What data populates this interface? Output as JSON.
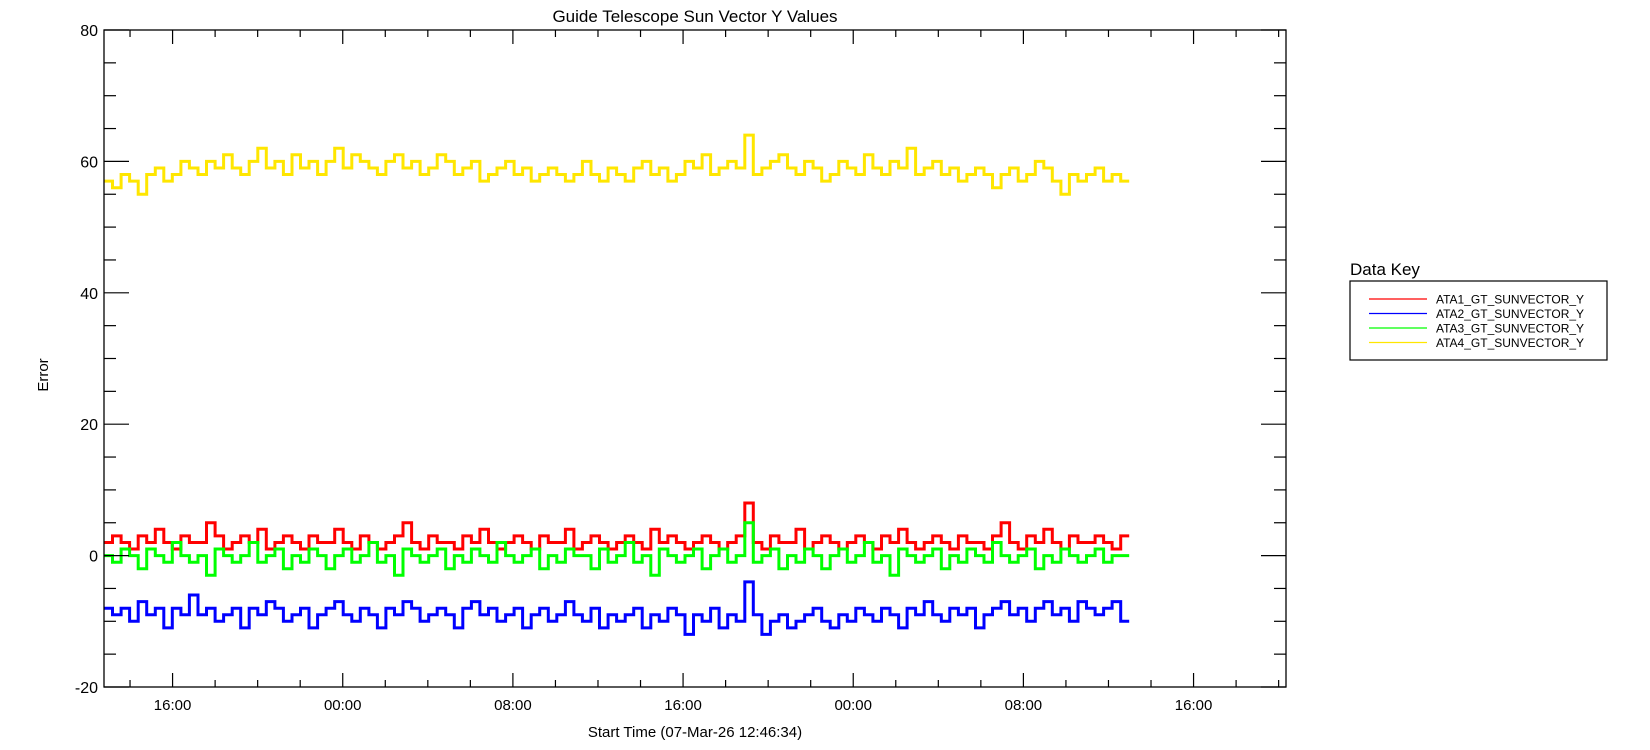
{
  "chart_data": {
    "type": "line",
    "title": "Guide Telescope Sun Vector Y Values",
    "xlabel": "Start Time (07-Mar-26 12:46:34)",
    "ylabel": "Error",
    "x_units": "hours since start",
    "xlim": [
      0,
      55.57
    ],
    "ylim": [
      -20,
      80
    ],
    "y_ticks": [
      -20,
      0,
      20,
      40,
      60,
      80
    ],
    "y_tick_labels": [
      "-20",
      "0",
      "20",
      "40",
      "60",
      "80"
    ],
    "y_minor_step": 5,
    "x_major_ticks": [
      3.224,
      11.224,
      19.224,
      27.224,
      35.224,
      43.224,
      51.224
    ],
    "x_tick_labels": [
      "16:00",
      "00:00",
      "08:00",
      "16:00",
      "00:00",
      "08:00",
      "16:00"
    ],
    "x_minor_step_hours": 2,
    "data_x_range": [
      0,
      48.2
    ],
    "grid": false,
    "legend": {
      "title": "Data Key",
      "placement": "right"
    },
    "series": [
      {
        "name": "ATA1_GT_SUNVECTOR_Y",
        "color": "#ff0000",
        "values": [
          2,
          3,
          2,
          1,
          3,
          2,
          4,
          2,
          1,
          3,
          2,
          2,
          5,
          3,
          1,
          2,
          3,
          2,
          4,
          1,
          2,
          3,
          2,
          1,
          3,
          2,
          2,
          4,
          2,
          1,
          3,
          2,
          1,
          2,
          3,
          5,
          2,
          1,
          3,
          2,
          2,
          1,
          3,
          2,
          4,
          2,
          1,
          2,
          3,
          2,
          1,
          3,
          2,
          2,
          4,
          1,
          2,
          3,
          2,
          1,
          2,
          3,
          2,
          1,
          4,
          2,
          3,
          2,
          1,
          2,
          3,
          2,
          1,
          2,
          3,
          8,
          2,
          1,
          3,
          2,
          2,
          4,
          1,
          2,
          3,
          2,
          1,
          2,
          3,
          2,
          1,
          3,
          2,
          4,
          2,
          1,
          2,
          3,
          2,
          1,
          3,
          2,
          2,
          1,
          3,
          5,
          2,
          1,
          3,
          2,
          4,
          2,
          1,
          3,
          2,
          2,
          3,
          2,
          1,
          3
        ]
      },
      {
        "name": "ATA2_GT_SUNVECTOR_Y",
        "color": "#0000ff",
        "values": [
          -8,
          -9,
          -8,
          -10,
          -7,
          -9,
          -8,
          -11,
          -8,
          -9,
          -6,
          -9,
          -8,
          -10,
          -9,
          -8,
          -11,
          -8,
          -9,
          -7,
          -8,
          -10,
          -9,
          -8,
          -11,
          -9,
          -8,
          -7,
          -9,
          -10,
          -8,
          -9,
          -11,
          -8,
          -9,
          -7,
          -8,
          -10,
          -9,
          -8,
          -9,
          -11,
          -8,
          -7,
          -9,
          -8,
          -10,
          -9,
          -8,
          -11,
          -9,
          -8,
          -10,
          -9,
          -7,
          -9,
          -10,
          -8,
          -11,
          -9,
          -10,
          -9,
          -8,
          -11,
          -9,
          -10,
          -8,
          -9,
          -12,
          -9,
          -10,
          -8,
          -11,
          -9,
          -10,
          -4,
          -9,
          -12,
          -10,
          -9,
          -11,
          -10,
          -9,
          -8,
          -10,
          -11,
          -9,
          -10,
          -8,
          -9,
          -10,
          -8,
          -9,
          -11,
          -8,
          -9,
          -7,
          -9,
          -10,
          -8,
          -9,
          -8,
          -11,
          -9,
          -8,
          -7,
          -9,
          -8,
          -10,
          -8,
          -7,
          -9,
          -8,
          -10,
          -7,
          -8,
          -9,
          -8,
          -7,
          -10
        ]
      },
      {
        "name": "ATA3_GT_SUNVECTOR_Y",
        "color": "#00ff00",
        "values": [
          0,
          -1,
          1,
          0,
          -2,
          1,
          0,
          -1,
          2,
          0,
          -1,
          0,
          -3,
          1,
          0,
          -1,
          0,
          2,
          -1,
          0,
          1,
          -2,
          0,
          -1,
          1,
          0,
          -2,
          0,
          1,
          -1,
          0,
          2,
          -1,
          0,
          -3,
          1,
          0,
          -1,
          0,
          1,
          -2,
          0,
          -1,
          1,
          0,
          -1,
          2,
          0,
          -1,
          0,
          1,
          -2,
          0,
          -1,
          1,
          0,
          0,
          -2,
          1,
          -1,
          0,
          2,
          -1,
          0,
          -3,
          1,
          0,
          -1,
          0,
          1,
          -2,
          0,
          1,
          -1,
          0,
          5,
          -1,
          0,
          1,
          -2,
          0,
          -1,
          1,
          0,
          -2,
          0,
          1,
          -1,
          0,
          2,
          -1,
          0,
          -3,
          1,
          0,
          -1,
          0,
          1,
          -2,
          0,
          -1,
          1,
          0,
          -1,
          2,
          0,
          -1,
          0,
          1,
          -2,
          0,
          -1,
          1,
          0,
          -1,
          0,
          1,
          -1,
          0,
          0
        ]
      },
      {
        "name": "ATA4_GT_SUNVECTOR_Y",
        "color": "#ffe600",
        "values": [
          57,
          56,
          58,
          57,
          55,
          58,
          59,
          57,
          58,
          60,
          59,
          58,
          60,
          59,
          61,
          59,
          58,
          60,
          62,
          59,
          60,
          58,
          61,
          59,
          60,
          58,
          60,
          62,
          59,
          61,
          60,
          59,
          58,
          60,
          61,
          59,
          60,
          58,
          59,
          61,
          60,
          58,
          59,
          60,
          57,
          58,
          59,
          60,
          58,
          59,
          57,
          58,
          59,
          58,
          57,
          58,
          60,
          58,
          57,
          59,
          58,
          57,
          59,
          60,
          58,
          59,
          57,
          58,
          60,
          59,
          61,
          58,
          59,
          60,
          59,
          64,
          58,
          59,
          60,
          61,
          59,
          58,
          60,
          59,
          57,
          58,
          60,
          59,
          58,
          61,
          59,
          58,
          60,
          59,
          62,
          58,
          59,
          60,
          58,
          59,
          57,
          58,
          59,
          58,
          56,
          58,
          59,
          57,
          58,
          60,
          59,
          57,
          55,
          58,
          57,
          58,
          59,
          57,
          58,
          57
        ]
      }
    ]
  }
}
